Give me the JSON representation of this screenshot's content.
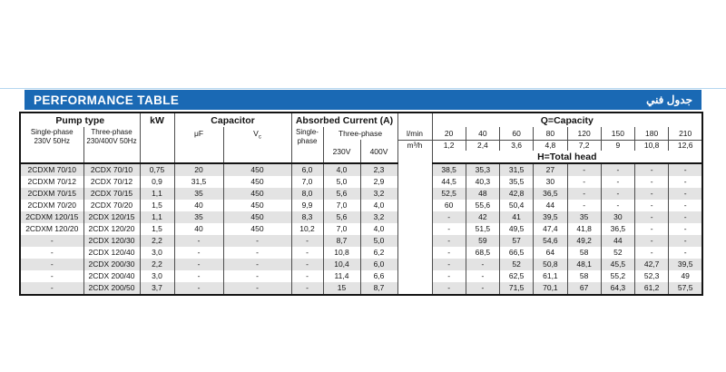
{
  "page": {
    "title": "PERFORMANCE TABLE",
    "title_arabic": "جدول فني",
    "accent_color": "#1a69b4",
    "stripe_color": "#e3e3e3"
  },
  "table": {
    "pump_type_label": "Pump type",
    "single_phase_pump": "Single-phase\n230V 50Hz",
    "three_phase_pump": "Three-phase\n230/400V 50Hz",
    "kw_label": "kW",
    "capacitor_label": "Capacitor",
    "uf_label": "μF",
    "vc_main": "V",
    "vc_sub": "c",
    "absorbed_label": "Absorbed Current (A)",
    "abs_single": "Single-\nphase",
    "abs_three": "Three-phase",
    "abs_230": "230V",
    "abs_400": "400V",
    "lmin_label": "l/min",
    "m3h_label": "m³/h",
    "capacity_label": "Q=Capacity",
    "head_label": "H=Total head",
    "capacity_lmin": [
      "20",
      "40",
      "60",
      "80",
      "120",
      "150",
      "180",
      "210"
    ],
    "capacity_m3h": [
      "1,2",
      "2,4",
      "3,6",
      "4,8",
      "7,2",
      "9",
      "10,8",
      "12,6"
    ],
    "rows": [
      {
        "single": "2CDXM 70/10",
        "three": "2CDX 70/10",
        "kw": "0,75",
        "uf": "20",
        "vc": "450",
        "a1": "6,0",
        "a230": "4,0",
        "a400": "2,3",
        "head": [
          "38,5",
          "35,3",
          "31,5",
          "27",
          "-",
          "-",
          "-",
          "-"
        ]
      },
      {
        "single": "2CDXM 70/12",
        "three": "2CDX 70/12",
        "kw": "0,9",
        "uf": "31,5",
        "vc": "450",
        "a1": "7,0",
        "a230": "5,0",
        "a400": "2,9",
        "head": [
          "44,5",
          "40,3",
          "35,5",
          "30",
          "-",
          "-",
          "-",
          "-"
        ]
      },
      {
        "single": "2CDXM 70/15",
        "three": "2CDX 70/15",
        "kw": "1,1",
        "uf": "35",
        "vc": "450",
        "a1": "8,0",
        "a230": "5,6",
        "a400": "3,2",
        "head": [
          "52,5",
          "48",
          "42,8",
          "36,5",
          "-",
          "-",
          "-",
          "-"
        ]
      },
      {
        "single": "2CDXM 70/20",
        "three": "2CDX 70/20",
        "kw": "1,5",
        "uf": "40",
        "vc": "450",
        "a1": "9,9",
        "a230": "7,0",
        "a400": "4,0",
        "head": [
          "60",
          "55,6",
          "50,4",
          "44",
          "-",
          "-",
          "-",
          "-"
        ]
      },
      {
        "single": "2CDXM 120/15",
        "three": "2CDX 120/15",
        "kw": "1,1",
        "uf": "35",
        "vc": "450",
        "a1": "8,3",
        "a230": "5,6",
        "a400": "3,2",
        "head": [
          "-",
          "42",
          "41",
          "39,5",
          "35",
          "30",
          "-",
          "-"
        ]
      },
      {
        "single": "2CDXM 120/20",
        "three": "2CDX 120/20",
        "kw": "1,5",
        "uf": "40",
        "vc": "450",
        "a1": "10,2",
        "a230": "7,0",
        "a400": "4,0",
        "head": [
          "-",
          "51,5",
          "49,5",
          "47,4",
          "41,8",
          "36,5",
          "-",
          "-"
        ]
      },
      {
        "single": "-",
        "three": "2CDX 120/30",
        "kw": "2,2",
        "uf": "-",
        "vc": "-",
        "a1": "-",
        "a230": "8,7",
        "a400": "5,0",
        "head": [
          "-",
          "59",
          "57",
          "54,6",
          "49,2",
          "44",
          "-",
          "-"
        ]
      },
      {
        "single": "-",
        "three": "2CDX 120/40",
        "kw": "3,0",
        "uf": "-",
        "vc": "-",
        "a1": "-",
        "a230": "10,8",
        "a400": "6,2",
        "head": [
          "-",
          "68,5",
          "66,5",
          "64",
          "58",
          "52",
          "-",
          "-"
        ]
      },
      {
        "single": "-",
        "three": "2CDX 200/30",
        "kw": "2,2",
        "uf": "-",
        "vc": "-",
        "a1": "-",
        "a230": "10,4",
        "a400": "6,0",
        "head": [
          "-",
          "-",
          "52",
          "50,8",
          "48,1",
          "45,5",
          "42,7",
          "39,5"
        ]
      },
      {
        "single": "-",
        "three": "2CDX 200/40",
        "kw": "3,0",
        "uf": "-",
        "vc": "-",
        "a1": "-",
        "a230": "11,4",
        "a400": "6,6",
        "head": [
          "-",
          "-",
          "62,5",
          "61,1",
          "58",
          "55,2",
          "52,3",
          "49"
        ]
      },
      {
        "single": "-",
        "three": "2CDX 200/50",
        "kw": "3,7",
        "uf": "-",
        "vc": "-",
        "a1": "-",
        "a230": "15",
        "a400": "8,7",
        "head": [
          "-",
          "-",
          "71,5",
          "70,1",
          "67",
          "64,3",
          "61,2",
          "57,5"
        ]
      }
    ]
  }
}
